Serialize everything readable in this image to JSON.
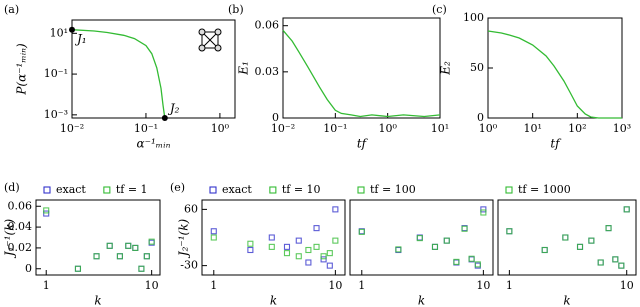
{
  "chart_data": [
    {
      "type": "line",
      "panel_label": "(a)",
      "xscale": "log",
      "yscale": "log",
      "xlabel": "α⁻¹ₘᵢₙ",
      "ylabel": "P(α⁻¹ₘᵢₙ)",
      "x": [
        0.01,
        0.02,
        0.03,
        0.05,
        0.07,
        0.1,
        0.12,
        0.14,
        0.16,
        0.17,
        0.18
      ],
      "series": [
        {
          "color": "#33bb33",
          "values": [
            15,
            13,
            11,
            8,
            5.5,
            2.5,
            1,
            0.2,
            0.02,
            0.003,
            0.0007
          ]
        }
      ],
      "points": [
        {
          "label": "J₁",
          "x": 0.01,
          "y": 15
        },
        {
          "label": "J₂",
          "x": 0.18,
          "y": 0.0007
        }
      ],
      "xlim": [
        0.01,
        1.6
      ],
      "ylim": [
        0.0007,
        45
      ],
      "xticks": [
        {
          "value": 0.01,
          "label": "10⁻²"
        },
        {
          "value": 0.1,
          "label": "10⁻¹"
        },
        {
          "value": 1,
          "label": "10⁰"
        }
      ],
      "yticks": [
        {
          "value": 10,
          "label": "10¹"
        },
        {
          "value": 0.1,
          "label": "10⁻¹"
        },
        {
          "value": 0.001,
          "label": "10⁻³"
        }
      ]
    },
    {
      "type": "line",
      "panel_label": "(b)",
      "xscale": "log",
      "xlabel": "tf",
      "ylabel": "E₁",
      "x": [
        0.01,
        0.015,
        0.02,
        0.03,
        0.05,
        0.07,
        0.1,
        0.13,
        0.2,
        0.3,
        0.5,
        1,
        2,
        5,
        10
      ],
      "series": [
        {
          "color": "#33bb33",
          "values": [
            0.057,
            0.05,
            0.043,
            0.033,
            0.02,
            0.012,
            0.005,
            0.003,
            0.002,
            0.001,
            0.002,
            0.001,
            0.002,
            0.001,
            0.002
          ]
        }
      ],
      "xlim": [
        0.01,
        10
      ],
      "ylim": [
        0,
        0.065
      ],
      "xticks": [
        {
          "value": 0.01,
          "label": "10⁻²"
        },
        {
          "value": 0.1,
          "label": "10⁻¹"
        },
        {
          "value": 1,
          "label": "10⁰"
        },
        {
          "value": 10,
          "label": "10¹"
        }
      ],
      "yticks": [
        0,
        0.03,
        0.06
      ]
    },
    {
      "type": "line",
      "panel_label": "(c)",
      "xscale": "log",
      "xlabel": "tf",
      "ylabel": "E₂",
      "x": [
        1,
        2,
        3,
        5,
        10,
        20,
        30,
        50,
        70,
        100,
        150,
        200,
        300,
        1000
      ],
      "series": [
        {
          "color": "#33bb33",
          "values": [
            87,
            85,
            83,
            80,
            73,
            62,
            52,
            37,
            25,
            12,
            4,
            1,
            0,
            0
          ]
        }
      ],
      "xlim": [
        1,
        1000
      ],
      "ylim": [
        0,
        100
      ],
      "xticks": [
        {
          "value": 1,
          "label": "10⁰"
        },
        {
          "value": 10,
          "label": "10¹"
        },
        {
          "value": 100,
          "label": "10²"
        },
        {
          "value": 1000,
          "label": "10³"
        }
      ],
      "yticks": [
        0,
        50,
        100
      ]
    },
    {
      "type": "scatter",
      "panel_label": "(d)",
      "xscale": "log",
      "xlabel": "k",
      "ylabel": "J₁⁻¹(k)",
      "x": [
        1,
        2,
        3,
        4,
        5,
        6,
        7,
        8,
        9,
        10
      ],
      "series": [
        {
          "name": "exact",
          "color": "#3333cc",
          "values": [
            0.053,
            0,
            0.012,
            0.022,
            0.012,
            0.022,
            0.02,
            0,
            0.012,
            0.025
          ]
        },
        {
          "name": "tf = 1",
          "color": "#33bb33",
          "values": [
            0.056,
            0,
            0.012,
            0.022,
            0.012,
            0.022,
            0.02,
            0,
            0.012,
            0.026
          ]
        }
      ],
      "xlim": [
        0.8,
        12
      ],
      "ylim": [
        -0.006,
        0.066
      ],
      "xticks": [
        1,
        10
      ],
      "yticks": [
        0,
        0.02,
        0.04,
        0.06
      ]
    },
    {
      "type": "scatter",
      "panel_label": "(e)",
      "xscale": "log",
      "xlabel": "k",
      "ylabel": "J₂⁻¹(k)",
      "x": [
        1,
        2,
        3,
        4,
        5,
        6,
        7,
        8,
        9,
        10
      ],
      "series": [
        {
          "name": "exact",
          "color": "#3333cc",
          "values": [
            25,
            -5,
            15,
            0,
            10,
            -25,
            30,
            -20,
            -30,
            60
          ]
        },
        {
          "name": "tf = 10",
          "color": "#33bb33",
          "values": [
            15,
            5,
            0,
            -10,
            -15,
            -5,
            0,
            -15,
            -10,
            10
          ]
        }
      ],
      "xlim": [
        0.8,
        12
      ],
      "ylim": [
        -45,
        75
      ],
      "xticks": [
        1,
        10
      ],
      "yticks": [
        -30,
        60
      ]
    },
    {
      "type": "scatter",
      "xscale": "log",
      "xlabel": "k",
      "x": [
        1,
        2,
        3,
        4,
        5,
        6,
        7,
        8,
        9,
        10
      ],
      "series": [
        {
          "color": "#3333cc",
          "values": [
            25,
            -5,
            15,
            0,
            10,
            -25,
            30,
            -20,
            -30,
            60
          ]
        },
        {
          "name": "tf = 100",
          "color": "#33bb33",
          "values": [
            24,
            -4,
            14,
            0,
            10,
            -24,
            29,
            -19,
            -28,
            55
          ]
        }
      ],
      "xlim": [
        0.8,
        12
      ],
      "ylim": [
        -45,
        75
      ],
      "xticks": [
        1,
        10
      ]
    },
    {
      "type": "scatter",
      "xscale": "log",
      "xlabel": "k",
      "x": [
        1,
        2,
        3,
        4,
        5,
        6,
        7,
        8,
        9,
        10
      ],
      "series": [
        {
          "color": "#3333cc",
          "values": [
            25,
            -5,
            15,
            0,
            10,
            -25,
            30,
            -20,
            -30,
            60
          ]
        },
        {
          "name": "tf = 1000",
          "color": "#33bb33",
          "values": [
            25,
            -5,
            15,
            0,
            10,
            -25,
            30,
            -20,
            -30,
            60
          ]
        }
      ],
      "xlim": [
        0.8,
        12
      ],
      "ylim": [
        -45,
        75
      ],
      "xticks": [
        1,
        10
      ]
    }
  ]
}
